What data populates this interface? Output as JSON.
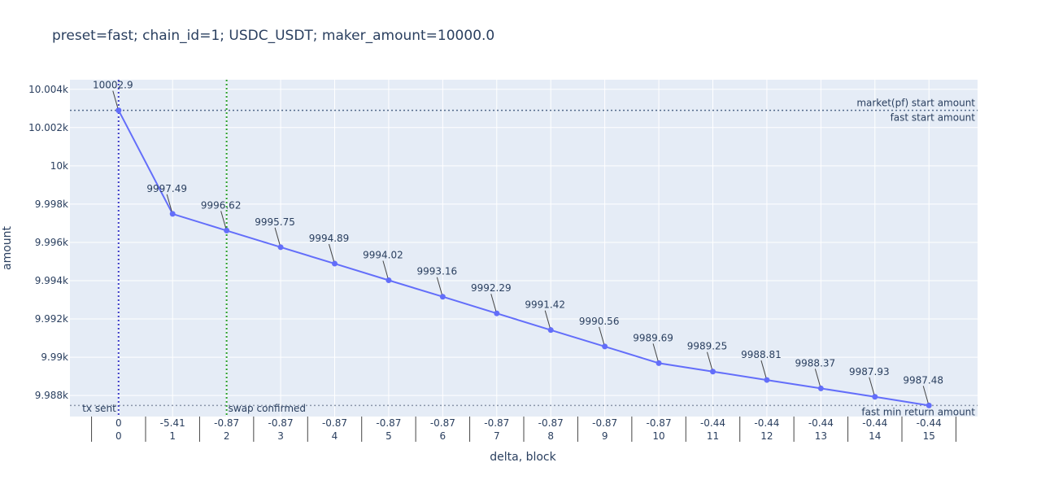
{
  "chart_data": {
    "type": "line",
    "title": "preset=fast; chain_id=1; USDC_USDT; maker_amount=10000.0",
    "xlabel": "delta, block",
    "ylabel": "amount",
    "x": [
      0,
      1,
      2,
      3,
      4,
      5,
      6,
      7,
      8,
      9,
      10,
      11,
      12,
      13,
      14,
      15
    ],
    "x_delta": [
      "0",
      "-5.41",
      "-0.87",
      "-0.87",
      "-0.87",
      "-0.87",
      "-0.87",
      "-0.87",
      "-0.87",
      "-0.87",
      "-0.87",
      "-0.44",
      "-0.44",
      "-0.44",
      "-0.44",
      "-0.44"
    ],
    "x_block": [
      "0",
      "1",
      "2",
      "3",
      "4",
      "5",
      "6",
      "7",
      "8",
      "9",
      "10",
      "11",
      "12",
      "13",
      "14",
      "15"
    ],
    "series": [
      {
        "values": [
          10002.9,
          9997.49,
          9996.62,
          9995.75,
          9994.89,
          9994.02,
          9993.16,
          9992.29,
          9991.42,
          9990.56,
          9989.69,
          9989.25,
          9988.81,
          9988.37,
          9987.93,
          9987.48
        ],
        "labels": [
          "10002.9",
          "9997.49",
          "9996.62",
          "9995.75",
          "9994.89",
          "9994.02",
          "9993.16",
          "9992.29",
          "9991.42",
          "9990.56",
          "9989.69",
          "9989.25",
          "9988.81",
          "9988.37",
          "9987.93",
          "9987.48"
        ],
        "color": "#636efa"
      }
    ],
    "y_ticks": [
      {
        "value": 9988,
        "label": "9.988k"
      },
      {
        "value": 9990,
        "label": "9.99k"
      },
      {
        "value": 9992,
        "label": "9.992k"
      },
      {
        "value": 9994,
        "label": "9.994k"
      },
      {
        "value": 9996,
        "label": "9.996k"
      },
      {
        "value": 9998,
        "label": "9.998k"
      },
      {
        "value": 10000,
        "label": "10k"
      },
      {
        "value": 10002,
        "label": "10.002k"
      },
      {
        "value": 10004,
        "label": "10.004k"
      }
    ],
    "ylim": [
      9986.9,
      10004.5
    ],
    "xlim": [
      -0.9,
      15.9
    ],
    "hlines": [
      {
        "value": 10002.9,
        "labels": [
          "market(pf) start amount",
          "fast start amount"
        ],
        "color": "#546a8a"
      },
      {
        "value": 9987.48,
        "labels": [
          "fast min return amount"
        ],
        "color": "#8a96aa"
      }
    ],
    "vlines": [
      {
        "x": 0,
        "label": "tx sent",
        "color": "#3c3cc8"
      },
      {
        "x": 2,
        "label": "swap confirmed",
        "color": "#2ca02c"
      }
    ],
    "grid": true,
    "plot_bgcolor": "#e5ecf6",
    "legend": "none"
  }
}
